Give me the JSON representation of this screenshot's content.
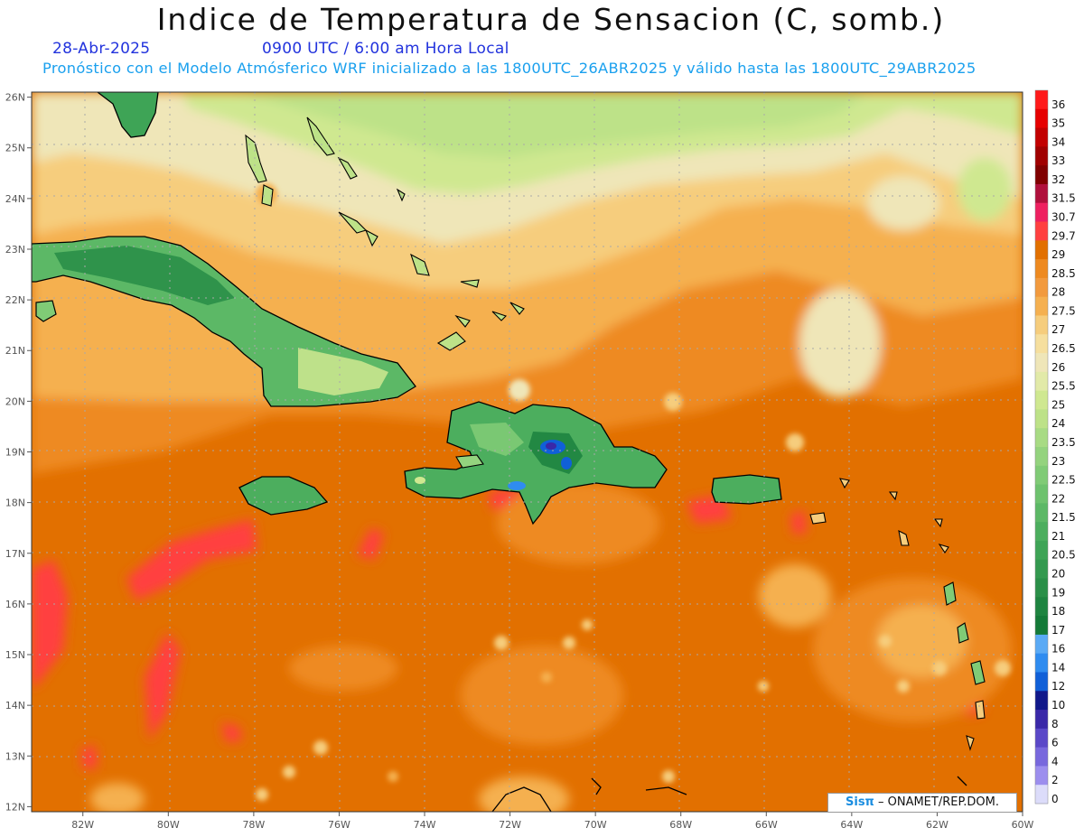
{
  "header": {
    "title": "Indice de Temperatura de Sensacion (C, somb.)",
    "date": "28-Abr-2025",
    "time": "0900 UTC / 6:00 am Hora Local",
    "description": "Pronóstico con el Modelo Atmósferico WRF inicializado a las 1800UTC_26ABR2025 y válido hasta las  1800UTC_29ABR2025",
    "date_color": "#2233dd",
    "description_color": "#1aa0ee"
  },
  "map": {
    "lon_range": [
      -83.2,
      -60
    ],
    "lat_range": [
      11.9,
      26.1
    ],
    "lon_ticks": [
      "82W",
      "80W",
      "78W",
      "76W",
      "74W",
      "72W",
      "70W",
      "68W",
      "66W",
      "64W",
      "62W",
      "60W"
    ],
    "lat_ticks": [
      "26N",
      "25N",
      "24N",
      "23N",
      "22N",
      "21N",
      "20N",
      "19N",
      "18N",
      "17N",
      "16N",
      "15N",
      "14N",
      "13N",
      "12N"
    ],
    "grid": true
  },
  "colorbar": {
    "labels": [
      "36",
      "35",
      "34",
      "33",
      "32",
      "31.5",
      "30.7",
      "29.7",
      "29",
      "28.5",
      "28",
      "27.5",
      "27",
      "26.5",
      "26",
      "25.5",
      "25",
      "24",
      "23.5",
      "23",
      "22.5",
      "22",
      "21.5",
      "21",
      "20.5",
      "20",
      "19",
      "18",
      "17",
      "16",
      "14",
      "12",
      "10",
      "8",
      "6",
      "4",
      "2",
      "0"
    ],
    "colors": [
      "#ff1a1a",
      "#e60000",
      "#c20000",
      "#a00000",
      "#800000",
      "#b0103c",
      "#ee2060",
      "#ff4040",
      "#e27000",
      "#ee8a20",
      "#f29a3e",
      "#f5b050",
      "#f6cd7d",
      "#f6df9e",
      "#efe6b8",
      "#e2eaa8",
      "#cfe890",
      "#bde288",
      "#a8db84",
      "#94d37e",
      "#80cb76",
      "#6ec26e",
      "#5cb866",
      "#4cae5e",
      "#3ea456",
      "#33994f",
      "#2a8f48",
      "#1e8440",
      "#147a38",
      "#5aaaf5",
      "#2f8cf0",
      "#1060d8",
      "#10188a",
      "#3a28a8",
      "#5a48c8",
      "#7868dd",
      "#9c8eee",
      "#dcdcfa"
    ]
  },
  "credit": {
    "logo": "Sisπ",
    "text": " – ONAMET/REP.DOM."
  }
}
